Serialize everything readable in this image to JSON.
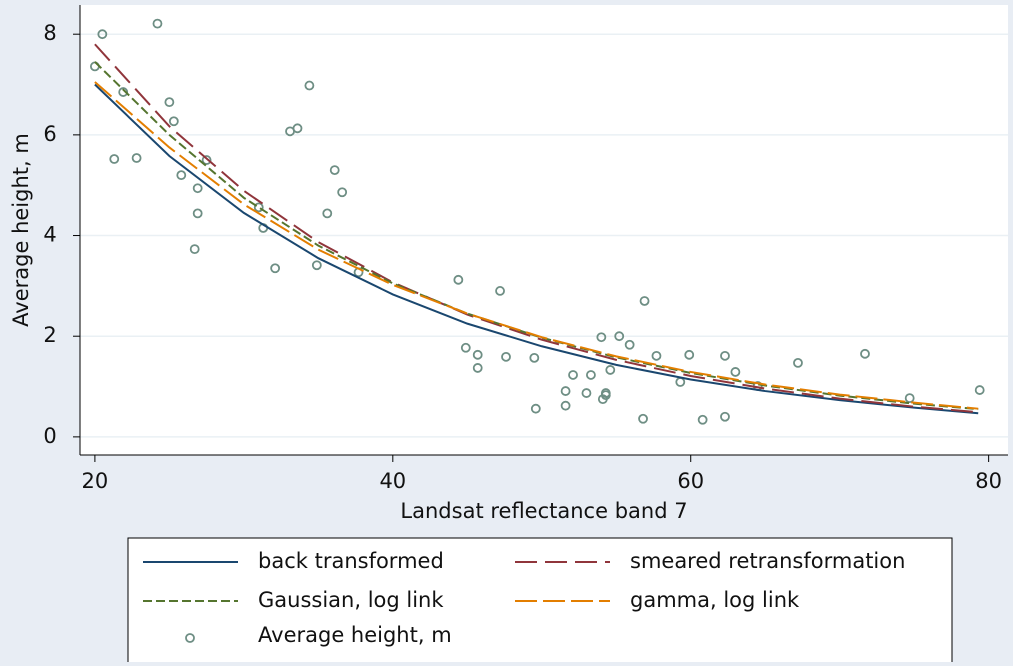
{
  "chart_data": {
    "type": "line",
    "xlabel": "Landsat reflectance band 7",
    "ylabel": "Average height, m",
    "xlim": [
      19,
      81.3
    ],
    "ylim": [
      -0.36,
      8.58
    ],
    "xticks": [
      20,
      40,
      60,
      80
    ],
    "yticks": [
      0,
      2,
      4,
      6,
      8
    ],
    "grid": true,
    "x": [
      20,
      25,
      30,
      35,
      40,
      45,
      50,
      55,
      60,
      65,
      70,
      75,
      79.3
    ],
    "series": [
      {
        "name": "back transformed",
        "type": "line",
        "color": "#1a476f",
        "values": [
          7.0,
          5.58,
          4.45,
          3.55,
          2.83,
          2.25,
          1.8,
          1.43,
          1.14,
          0.91,
          0.73,
          0.58,
          0.47
        ]
      },
      {
        "name": "smeared retransformation",
        "type": "line",
        "color": "#90353b",
        "values": [
          7.8,
          6.17,
          4.89,
          3.87,
          3.07,
          2.43,
          1.93,
          1.53,
          1.21,
          0.96,
          0.76,
          0.6,
          0.49
        ]
      },
      {
        "name": "Gaussian, log link",
        "type": "line",
        "color": "#55752f",
        "values": [
          7.45,
          6.0,
          4.75,
          3.8,
          3.05,
          2.45,
          1.97,
          1.58,
          1.27,
          1.02,
          0.82,
          0.66,
          0.55
        ]
      },
      {
        "name": "gamma, log link",
        "type": "line",
        "color": "#e37e00",
        "values": [
          7.05,
          5.75,
          4.62,
          3.72,
          3.02,
          2.45,
          1.98,
          1.6,
          1.29,
          1.04,
          0.84,
          0.68,
          0.56
        ]
      },
      {
        "name": "Average height, m",
        "type": "scatter",
        "color": "#6e8e84",
        "x": [
          20.0,
          20.5,
          24.2,
          21.3,
          21.9,
          22.8,
          25.0,
          25.3,
          25.8,
          26.9,
          26.9,
          26.7,
          27.5,
          31.0,
          31.3,
          32.1,
          33.1,
          33.6,
          34.4,
          34.9,
          35.6,
          36.1,
          36.6,
          37.7,
          44.4,
          44.9,
          45.7,
          45.7,
          47.2,
          47.6,
          49.5,
          49.6,
          51.6,
          51.6,
          52.1,
          53.0,
          53.3,
          54.0,
          54.1,
          54.3,
          54.3,
          54.6,
          55.2,
          55.9,
          56.8,
          56.9,
          57.7,
          59.3,
          59.9,
          60.8,
          62.3,
          62.3,
          63.0,
          64.5,
          67.2,
          71.7,
          74.7,
          79.4
        ],
        "values": [
          7.36,
          8.0,
          8.21,
          5.52,
          6.85,
          5.54,
          6.65,
          6.27,
          5.2,
          4.94,
          4.44,
          3.73,
          5.5,
          4.56,
          4.15,
          3.35,
          6.07,
          6.13,
          6.98,
          3.41,
          4.44,
          5.3,
          4.86,
          3.27,
          3.12,
          1.77,
          1.63,
          1.37,
          2.9,
          1.59,
          1.57,
          0.56,
          0.91,
          0.62,
          1.23,
          0.87,
          1.23,
          1.98,
          0.75,
          0.83,
          0.87,
          1.33,
          2.0,
          1.83,
          0.36,
          2.7,
          1.61,
          1.09,
          1.63,
          0.34,
          1.61,
          0.4,
          1.29,
          1.01,
          1.47,
          1.65,
          0.77,
          0.93
        ]
      }
    ]
  }
}
